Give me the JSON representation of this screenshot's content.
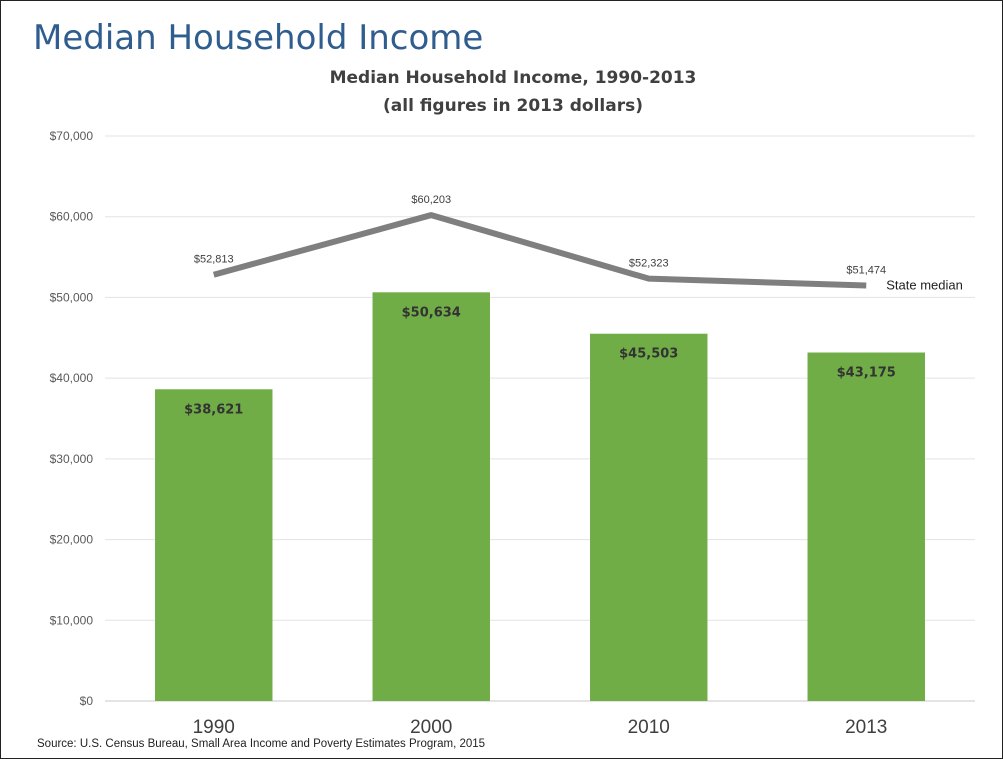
{
  "page": {
    "title": "Median Household Income",
    "source": "Source: U.S. Census Bureau, Small Area Income and Poverty Estimates Program, 2015"
  },
  "chart_data": {
    "type": "bar",
    "title": "Median Household Income, 1990-2013",
    "subtitle": "(all figures in 2013 dollars)",
    "xlabel": "",
    "ylabel": "",
    "categories": [
      "1990",
      "2000",
      "2010",
      "2013"
    ],
    "ylim": [
      0,
      70000
    ],
    "yticks": [
      0,
      10000,
      20000,
      30000,
      40000,
      50000,
      60000,
      70000
    ],
    "ytick_labels": [
      "$0",
      "$10,000",
      "$20,000",
      "$30,000",
      "$40,000",
      "$50,000",
      "$60,000",
      "$70,000"
    ],
    "grid": true,
    "series": [
      {
        "type": "bar",
        "values": [
          38621,
          50634,
          45503,
          43175
        ],
        "labels": [
          "$38,621",
          "$50,634",
          "$45,503",
          "$43,175"
        ],
        "color": "#70ad47"
      },
      {
        "type": "line",
        "name": "State median",
        "values": [
          52813,
          60203,
          52323,
          51474
        ],
        "labels": [
          "$52,813",
          "$60,203",
          "$52,323",
          "$51,474"
        ],
        "color": "#7f7f7f"
      }
    ]
  }
}
